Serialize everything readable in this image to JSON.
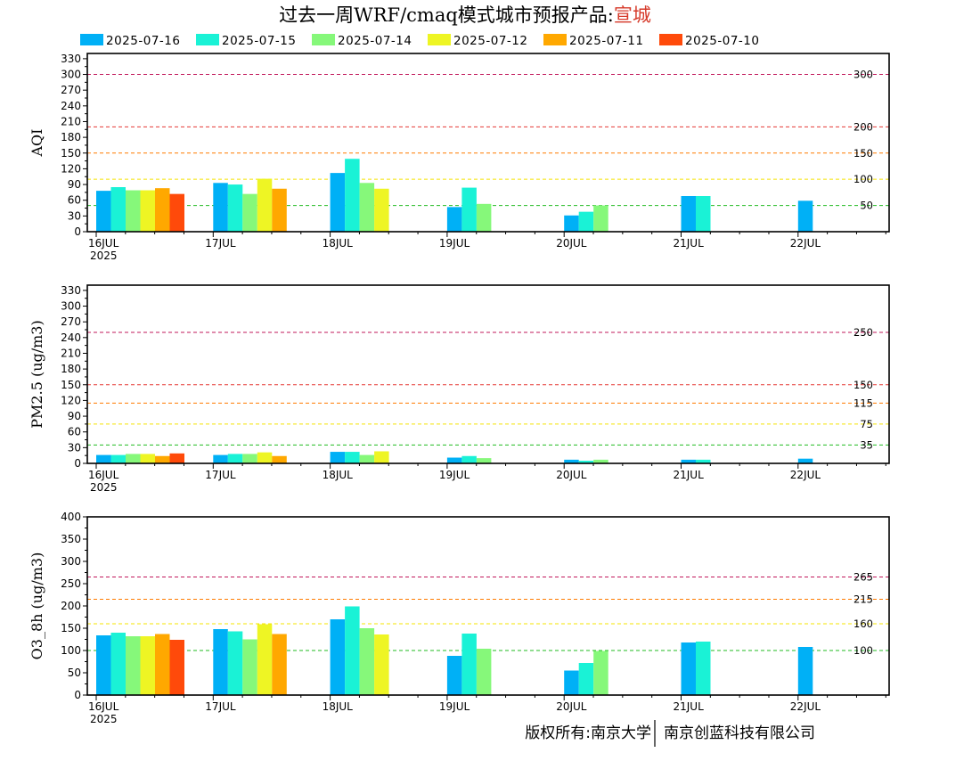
{
  "title": {
    "main": "过去一周WRF/cmaq模式城市预报产品:",
    "city": "宣城",
    "city_color": "#d63a2a"
  },
  "legend": [
    {
      "label": "2025-07-16",
      "color": "#00b0f6"
    },
    {
      "label": "2025-07-15",
      "color": "#1af2d6"
    },
    {
      "label": "2025-07-14",
      "color": "#86f87a"
    },
    {
      "label": "2025-07-12",
      "color": "#eef524"
    },
    {
      "label": "2025-07-11",
      "color": "#ffa800"
    },
    {
      "label": "2025-07-10",
      "color": "#ff4a0a"
    }
  ],
  "footer": {
    "left": "版权所有:南京大学",
    "right": "南京创蓝科技有限公司"
  },
  "chart_data": [
    {
      "type": "bar",
      "ylabel": "AQI",
      "ylim": [
        0,
        340
      ],
      "yticks": [
        0,
        30,
        60,
        90,
        120,
        150,
        180,
        210,
        240,
        270,
        300,
        330
      ],
      "day_labels": [
        "16JUL",
        "17JUL",
        "18JUL",
        "19JUL",
        "20JUL",
        "21JUL",
        "22JUL"
      ],
      "year_label": "2025",
      "series": [
        {
          "name": "2025-07-16",
          "color": "#00b0f6",
          "values": [
            78,
            93,
            112,
            47,
            31,
            68,
            59
          ]
        },
        {
          "name": "2025-07-15",
          "color": "#1af2d6",
          "values": [
            85,
            90,
            139,
            84,
            38,
            68,
            null
          ]
        },
        {
          "name": "2025-07-14",
          "color": "#86f87a",
          "values": [
            79,
            72,
            93,
            53,
            50,
            null,
            null
          ]
        },
        {
          "name": "2025-07-12",
          "color": "#eef524",
          "values": [
            79,
            101,
            82,
            null,
            null,
            null,
            null
          ]
        },
        {
          "name": "2025-07-11",
          "color": "#ffa800",
          "values": [
            83,
            82,
            null,
            null,
            null,
            null,
            null
          ]
        },
        {
          "name": "2025-07-10",
          "color": "#ff4a0a",
          "values": [
            72,
            null,
            null,
            null,
            null,
            null,
            null
          ]
        }
      ],
      "reference_lines": [
        {
          "value": 300,
          "label": "300",
          "color": "#c2185b"
        },
        {
          "value": 200,
          "label": "200",
          "color": "#e53935"
        },
        {
          "value": 150,
          "label": "150",
          "color": "#ff7b00"
        },
        {
          "value": 100,
          "label": "100",
          "color": "#f5e400"
        },
        {
          "value": 50,
          "label": "50",
          "color": "#22bb22"
        }
      ]
    },
    {
      "type": "bar",
      "ylabel": "PM2.5 (ug/m3)",
      "ylim": [
        0,
        340
      ],
      "yticks": [
        0,
        30,
        60,
        90,
        120,
        150,
        180,
        210,
        240,
        270,
        300,
        330
      ],
      "day_labels": [
        "16JUL",
        "17JUL",
        "18JUL",
        "19JUL",
        "20JUL",
        "21JUL",
        "22JUL"
      ],
      "year_label": "2025",
      "series": [
        {
          "name": "2025-07-16",
          "color": "#00b0f6",
          "values": [
            16,
            16,
            22,
            11,
            7,
            7,
            9
          ]
        },
        {
          "name": "2025-07-15",
          "color": "#1af2d6",
          "values": [
            16,
            18,
            22,
            14,
            5,
            7,
            null
          ]
        },
        {
          "name": "2025-07-14",
          "color": "#86f87a",
          "values": [
            18,
            18,
            16,
            10,
            7,
            null,
            null
          ]
        },
        {
          "name": "2025-07-12",
          "color": "#eef524",
          "values": [
            18,
            21,
            23,
            null,
            null,
            null,
            null
          ]
        },
        {
          "name": "2025-07-11",
          "color": "#ffa800",
          "values": [
            14,
            14,
            null,
            null,
            null,
            null,
            null
          ]
        },
        {
          "name": "2025-07-10",
          "color": "#ff4a0a",
          "values": [
            19,
            null,
            null,
            null,
            null,
            null,
            null
          ]
        }
      ],
      "reference_lines": [
        {
          "value": 250,
          "label": "250",
          "color": "#c2185b"
        },
        {
          "value": 150,
          "label": "150",
          "color": "#e53935"
        },
        {
          "value": 115,
          "label": "115",
          "color": "#ff7b00"
        },
        {
          "value": 75,
          "label": "75",
          "color": "#f5e400"
        },
        {
          "value": 35,
          "label": "35",
          "color": "#22bb22"
        }
      ]
    },
    {
      "type": "bar",
      "ylabel": "O3_8h (ug/m3)",
      "ylim": [
        0,
        400
      ],
      "yticks": [
        0,
        50,
        100,
        150,
        200,
        250,
        300,
        350,
        400
      ],
      "day_labels": [
        "16JUL",
        "17JUL",
        "18JUL",
        "19JUL",
        "20JUL",
        "21JUL",
        "22JUL"
      ],
      "year_label": "2025",
      "series": [
        {
          "name": "2025-07-16",
          "color": "#00b0f6",
          "values": [
            134,
            148,
            170,
            88,
            55,
            118,
            108
          ]
        },
        {
          "name": "2025-07-15",
          "color": "#1af2d6",
          "values": [
            140,
            143,
            199,
            138,
            72,
            120,
            null
          ]
        },
        {
          "name": "2025-07-14",
          "color": "#86f87a",
          "values": [
            132,
            125,
            150,
            104,
            99,
            null,
            null
          ]
        },
        {
          "name": "2025-07-12",
          "color": "#eef524",
          "values": [
            132,
            159,
            136,
            null,
            null,
            null,
            null
          ]
        },
        {
          "name": "2025-07-11",
          "color": "#ffa800",
          "values": [
            137,
            137,
            null,
            null,
            null,
            null,
            null
          ]
        },
        {
          "name": "2025-07-10",
          "color": "#ff4a0a",
          "values": [
            124,
            null,
            null,
            null,
            null,
            null,
            null
          ]
        }
      ],
      "reference_lines": [
        {
          "value": 265,
          "label": "265",
          "color": "#c2185b"
        },
        {
          "value": 215,
          "label": "215",
          "color": "#ff7b00"
        },
        {
          "value": 160,
          "label": "160",
          "color": "#f5e400"
        },
        {
          "value": 100,
          "label": "100",
          "color": "#22bb22"
        }
      ]
    }
  ]
}
